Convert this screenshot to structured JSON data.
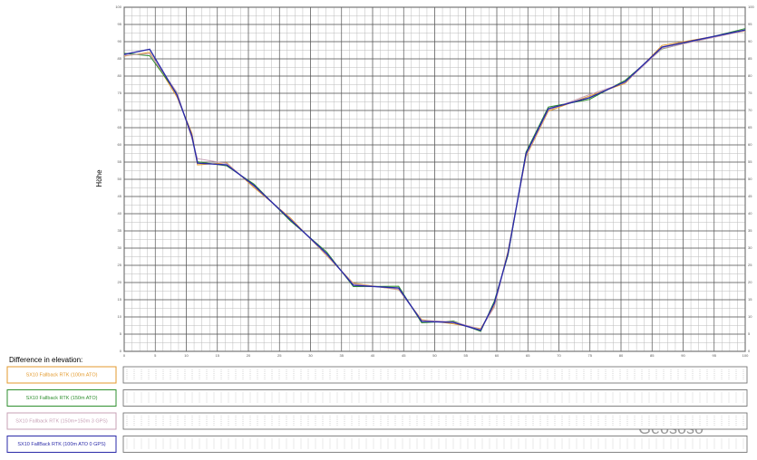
{
  "chart_data": {
    "type": "line",
    "y_label": "Höhe",
    "x": [
      0,
      4.1,
      8.5,
      10.9,
      11.8,
      16.5,
      20.9,
      26.7,
      32.6,
      36.9,
      44.2,
      47.9,
      53.0,
      57.4,
      59.6,
      61.8,
      64.7,
      68.3,
      74.9,
      80.7,
      86.6,
      100
    ],
    "series": [
      {
        "name": "SX10 Fallback RTK (100m ATO)",
        "color": "#e39a2c",
        "values": [
          85.8,
          86.9,
          73.9,
          63.4,
          54.2,
          54.8,
          47.6,
          38.9,
          27.8,
          19.8,
          17.9,
          9.2,
          8.0,
          6.6,
          13.2,
          29.1,
          56.6,
          69.8,
          74.2,
          77.9,
          88.9,
          93.1
        ]
      },
      {
        "name": "SX10 Fallback RTK (150m ATO)",
        "color": "#2f8f2f",
        "values": [
          86.6,
          85.9,
          74.9,
          62.1,
          55.1,
          53.9,
          48.6,
          38.0,
          28.9,
          18.8,
          18.9,
          8.3,
          8.8,
          5.8,
          14.6,
          27.9,
          57.9,
          71.0,
          73.2,
          78.8,
          87.9,
          93.8
        ]
      },
      {
        "name": "SX10 Fallback RTK (150m+150m 3 GPS)",
        "color": "#c7a1b6",
        "values": [
          86.0,
          86.5,
          75.3,
          61.8,
          56.0,
          54.6,
          48.0,
          38.6,
          28.0,
          19.6,
          18.0,
          9.0,
          8.6,
          6.4,
          12.8,
          28.8,
          56.9,
          70.1,
          74.6,
          78.1,
          88.0,
          93.2
        ]
      },
      {
        "name": "SX10 FallBack RTK (100m ATO 0 GPS)",
        "color": "#2a2aa8",
        "values": [
          86.3,
          87.8,
          74.5,
          62.6,
          54.7,
          54.2,
          48.2,
          38.4,
          28.4,
          19.2,
          18.4,
          8.7,
          8.4,
          6.1,
          14.0,
          28.4,
          57.4,
          70.5,
          73.7,
          78.4,
          88.4,
          93.4
        ]
      }
    ],
    "xlim": [
      0,
      100
    ],
    "ylim": [
      0,
      100
    ],
    "xticks": [
      0,
      5,
      10,
      15,
      20,
      25,
      30,
      35,
      40,
      45,
      50,
      55,
      60,
      65,
      70,
      75,
      80,
      85,
      90,
      95,
      100
    ],
    "yticks": [
      0,
      5,
      10,
      15,
      20,
      25,
      30,
      35,
      40,
      45,
      50,
      55,
      60,
      65,
      70,
      75,
      80,
      85,
      90,
      95,
      100
    ],
    "grid": true,
    "difference_title": "Difference in elevation:",
    "watermark": "Geososo"
  }
}
